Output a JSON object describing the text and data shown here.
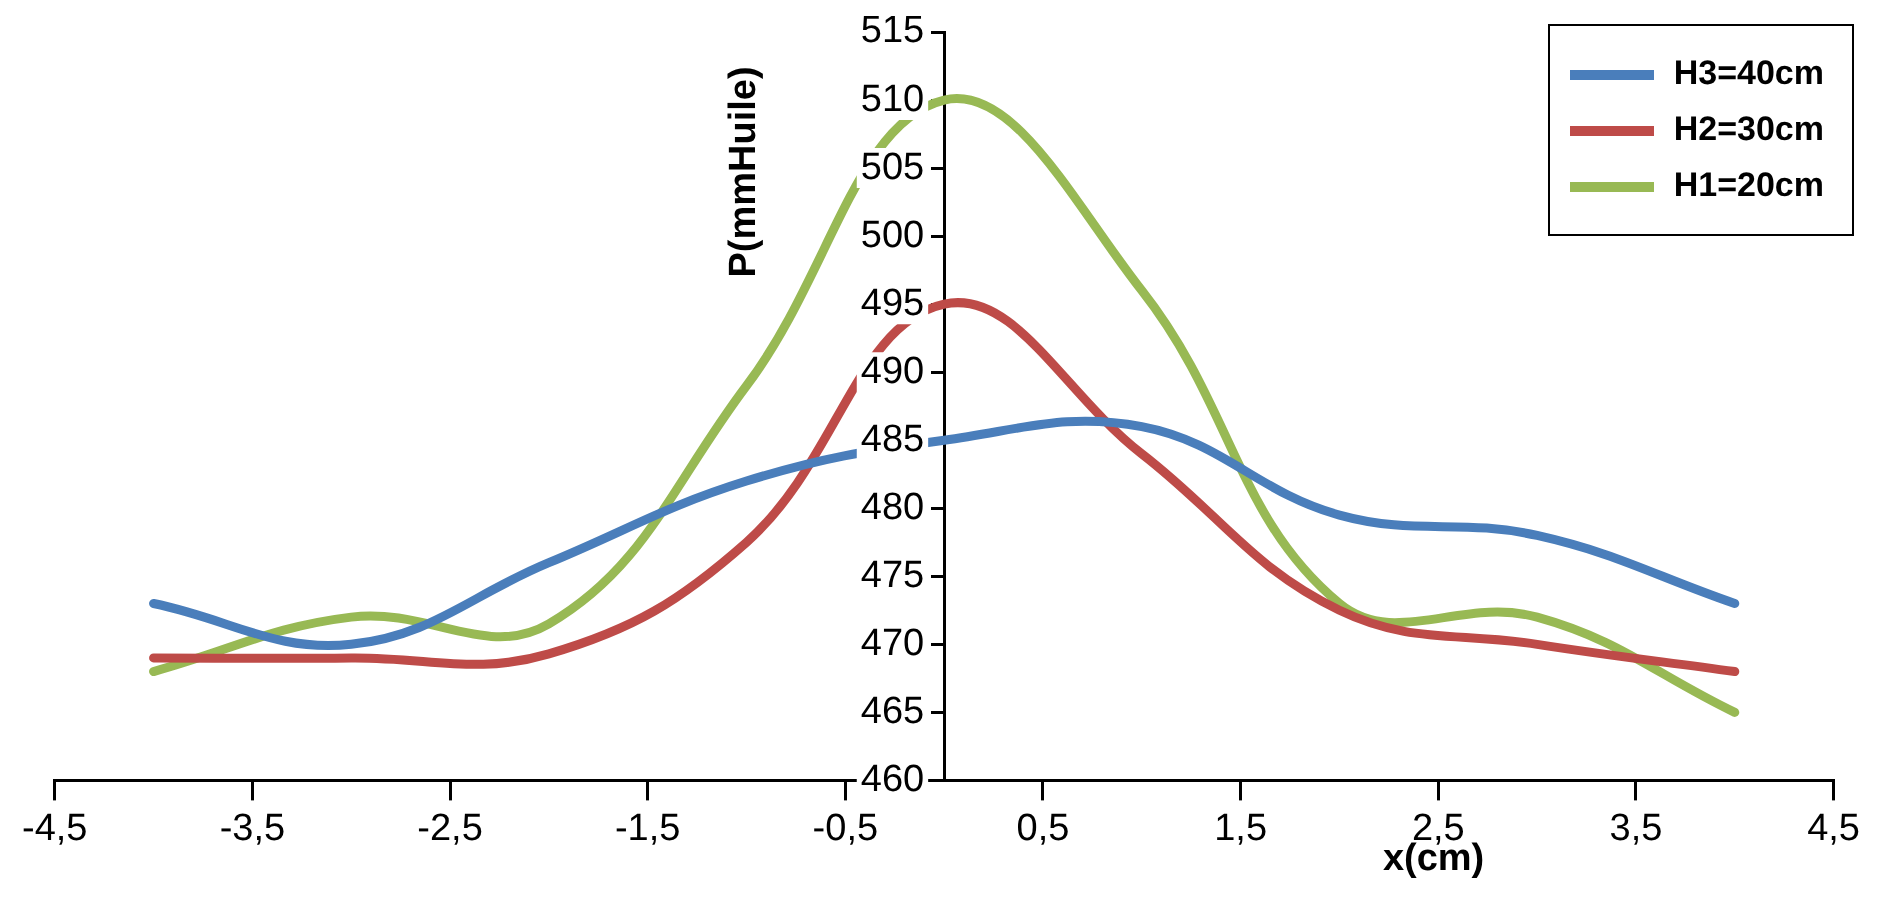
{
  "chart_data": {
    "type": "line",
    "xlabel": "x(cm)",
    "ylabel": "P(mmHuile)",
    "x": [
      -4,
      -3,
      -2,
      -1,
      0,
      1,
      2,
      3,
      4
    ],
    "xlim": [
      -4.5,
      4.5
    ],
    "xticks": [
      {
        "value": -4.5,
        "label": "-4,5"
      },
      {
        "value": -3.5,
        "label": "-3,5"
      },
      {
        "value": -2.5,
        "label": "-2,5"
      },
      {
        "value": -1.5,
        "label": "-1,5"
      },
      {
        "value": -0.5,
        "label": "-0,5"
      },
      {
        "value": 0.5,
        "label": "0,5"
      },
      {
        "value": 1.5,
        "label": "1,5"
      },
      {
        "value": 2.5,
        "label": "2,5"
      },
      {
        "value": 3.5,
        "label": "3,5"
      },
      {
        "value": 4.5,
        "label": "4,5"
      }
    ],
    "ylim": [
      460,
      515
    ],
    "yticks": [
      460,
      465,
      470,
      475,
      480,
      485,
      490,
      495,
      500,
      505,
      510,
      515
    ],
    "grid": false,
    "legend": "top right",
    "marker": "none",
    "line_style": "solid",
    "series": [
      {
        "name": "H3=40cm",
        "color": "#4a7ebb",
        "values": [
          473,
          470,
          476,
          482,
          485,
          486,
          479.5,
          478,
          473
        ]
      },
      {
        "name": "H2=30cm",
        "color": "#be4b48",
        "values": [
          469,
          469,
          469.3,
          477.5,
          495,
          484,
          472.5,
          470,
          468
        ]
      },
      {
        "name": "H1=20cm",
        "color": "#98b954",
        "values": [
          468,
          472,
          471.5,
          489,
          510,
          496,
          473,
          472,
          465
        ]
      }
    ]
  }
}
